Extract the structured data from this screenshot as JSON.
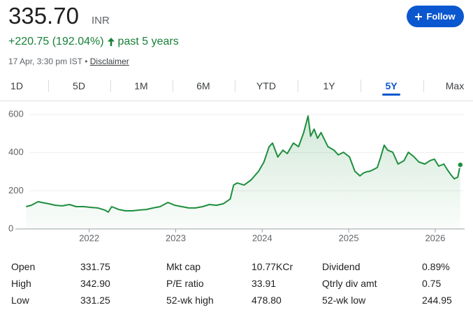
{
  "header": {
    "price": "335.70",
    "currency": "INR",
    "change": "+220.75 (192.04%)",
    "period": "past 5 years",
    "timestamp": "17 Apr, 3:30 pm IST",
    "separator": "•",
    "disclaimer": "Disclaimer",
    "follow": "Follow"
  },
  "tabs": {
    "items": [
      "1D",
      "5D",
      "1M",
      "6M",
      "YTD",
      "1Y",
      "5Y",
      "Max"
    ],
    "active": 6
  },
  "chart_data": {
    "type": "line",
    "color": "#1e8e3e",
    "x": [
      2021.27,
      2021.33,
      2021.41,
      2021.45,
      2021.53,
      2021.61,
      2021.69,
      2021.77,
      2021.85,
      2021.94,
      2022.02,
      2022.1,
      2022.18,
      2022.22,
      2022.26,
      2022.34,
      2022.42,
      2022.5,
      2022.58,
      2022.66,
      2022.74,
      2022.82,
      2022.91,
      2022.99,
      2023.07,
      2023.15,
      2023.23,
      2023.31,
      2023.39,
      2023.47,
      2023.55,
      2023.63,
      2023.67,
      2023.71,
      2023.79,
      2023.87,
      2023.96,
      2024.02,
      2024.08,
      2024.12,
      2024.18,
      2024.24,
      2024.29,
      2024.36,
      2024.42,
      2024.48,
      2024.53,
      2024.56,
      2024.6,
      2024.64,
      2024.68,
      2024.72,
      2024.76,
      2024.83,
      2024.88,
      2024.94,
      2025.01,
      2025.07,
      2025.13,
      2025.17,
      2025.21,
      2025.25,
      2025.33,
      2025.37,
      2025.41,
      2025.45,
      2025.51,
      2025.57,
      2025.64,
      2025.69,
      2025.75,
      2025.81,
      2025.88,
      2025.94,
      2025.99,
      2026.04,
      2026.1,
      2026.14,
      2026.18,
      2026.22,
      2026.26,
      2026.29
    ],
    "values": [
      117,
      124,
      143,
      139,
      132,
      124,
      121,
      128,
      117,
      117,
      113,
      110,
      99,
      88,
      117,
      102,
      95,
      95,
      99,
      102,
      110,
      117,
      139,
      124,
      117,
      110,
      110,
      117,
      128,
      124,
      132,
      157,
      230,
      241,
      230,
      256,
      303,
      351,
      431,
      450,
      377,
      413,
      395,
      450,
      431,
      505,
      592,
      486,
      523,
      475,
      505,
      468,
      431,
      413,
      388,
      402,
      377,
      303,
      278,
      293,
      300,
      303,
      322,
      377,
      439,
      413,
      402,
      340,
      358,
      402,
      380,
      351,
      340,
      358,
      366,
      329,
      340,
      311,
      285,
      263,
      271,
      336
    ],
    "xlim": [
      2021.09,
      2026.34
    ],
    "xticks": [
      2022,
      2023,
      2024,
      2025,
      2026
    ],
    "ylim": [
      0,
      640
    ],
    "yticks": [
      0,
      200,
      400,
      600
    ],
    "grid": true
  },
  "stats": {
    "columns": [
      [
        [
          "Open",
          "331.75"
        ],
        [
          "High",
          "342.90"
        ],
        [
          "Low",
          "331.25"
        ]
      ],
      [
        [
          "Mkt cap",
          "10.77KCr"
        ],
        [
          "P/E ratio",
          "33.91"
        ],
        [
          "52-wk high",
          "478.80"
        ]
      ],
      [
        [
          "Dividend",
          "0.89%"
        ],
        [
          "Qtrly div amt",
          "0.75"
        ],
        [
          "52-wk low",
          "244.95"
        ]
      ]
    ]
  }
}
